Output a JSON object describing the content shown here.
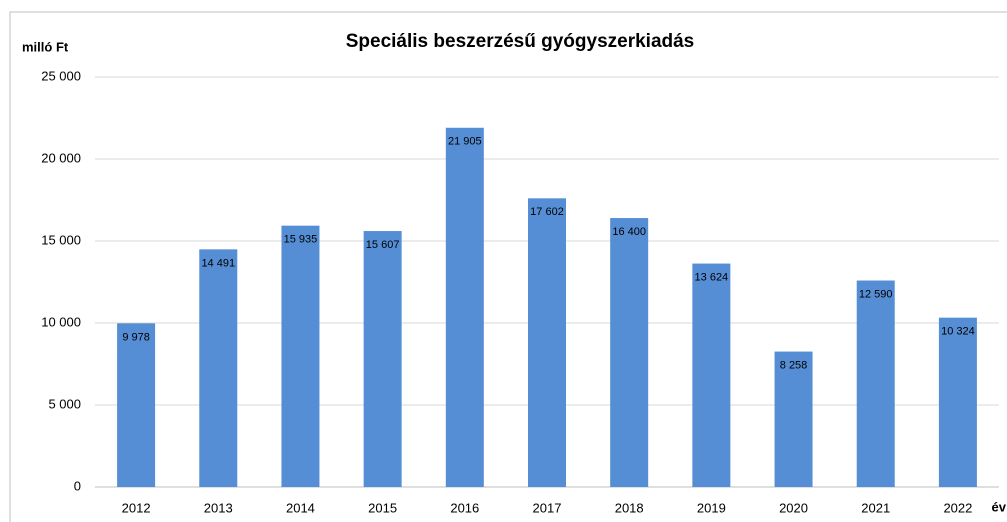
{
  "chart_data": {
    "type": "bar",
    "title": "Speciális beszerzésű gyógyszerkiadás",
    "y_label": "milló Ft",
    "x_label": "év",
    "categories": [
      "2012",
      "2013",
      "2014",
      "2015",
      "2016",
      "2017",
      "2018",
      "2019",
      "2020",
      "2021",
      "2022"
    ],
    "values": [
      9978,
      14491,
      15935,
      15607,
      21905,
      17602,
      16400,
      13624,
      8258,
      12590,
      10324
    ],
    "value_labels": [
      "9 978",
      "14 491",
      "15 935",
      "15 607",
      "21 905",
      "17 602",
      "16 400",
      "13 624",
      "8 258",
      "12 590",
      "10 324"
    ],
    "color": "#558ed5",
    "ylim": [
      0,
      25000
    ],
    "yticks": [
      0,
      {
        "value": 5000,
        "label": "5 000"
      },
      {
        "value": 10000,
        "label": "10 000"
      },
      {
        "value": 15000,
        "label": "15 000"
      },
      {
        "value": 20000,
        "label": "20 000"
      },
      {
        "value": 25000,
        "label": "25 000"
      }
    ],
    "grid": true
  }
}
